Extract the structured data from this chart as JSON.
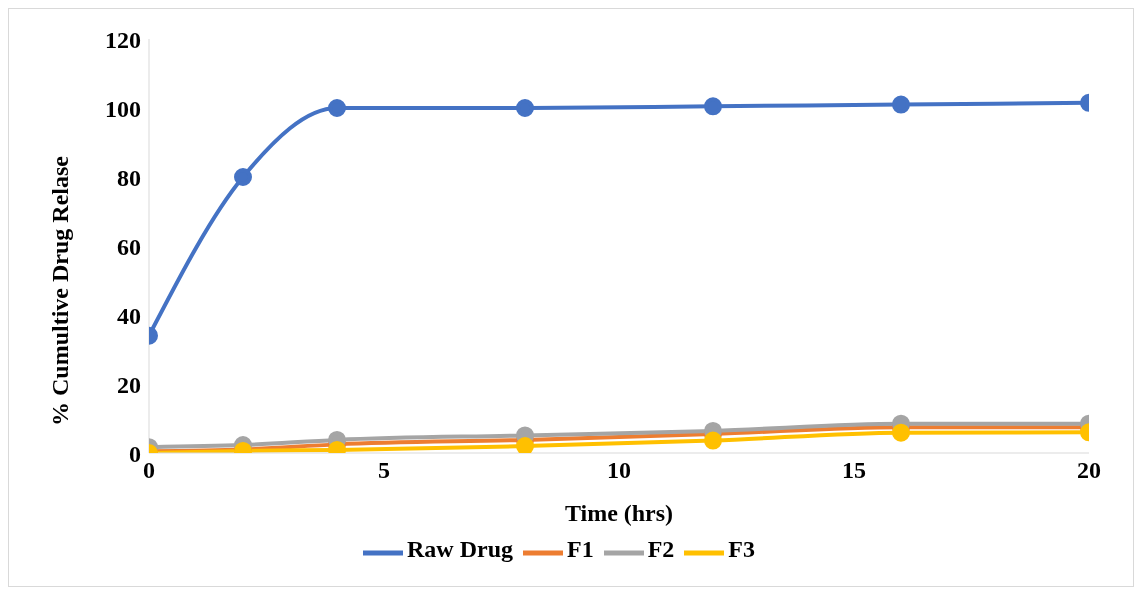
{
  "chart_data": {
    "type": "line",
    "xlabel": "Time (hrs)",
    "ylabel": "% Cumultive Drug Relase",
    "x": [
      0,
      2,
      4,
      8,
      12,
      16,
      20
    ],
    "series": [
      {
        "name": "Raw Drug",
        "color": "#4472c4",
        "values": [
          34,
          80,
          100,
          100,
          100.5,
          101,
          101.5
        ]
      },
      {
        "name": "F1",
        "color": "#ed7d31",
        "values": [
          0.5,
          1,
          2.5,
          3.8,
          5.5,
          7.5,
          7.5
        ]
      },
      {
        "name": "F2",
        "color": "#a5a5a5",
        "values": [
          1.7,
          2.3,
          3.8,
          5.1,
          6.4,
          8.5,
          8.5
        ]
      },
      {
        "name": "F3",
        "color": "#ffc000",
        "values": [
          0,
          0.6,
          0.9,
          2,
          3.6,
          5.9,
          6
        ]
      }
    ],
    "xlim": [
      0,
      20
    ],
    "xticks": [
      0,
      5,
      10,
      15,
      20
    ],
    "ylim": [
      0,
      120
    ],
    "yticks": [
      0,
      20,
      40,
      60,
      80,
      100,
      120
    ],
    "grid": false,
    "legend": "bottom",
    "marker": "circle",
    "line_style": "solid"
  }
}
